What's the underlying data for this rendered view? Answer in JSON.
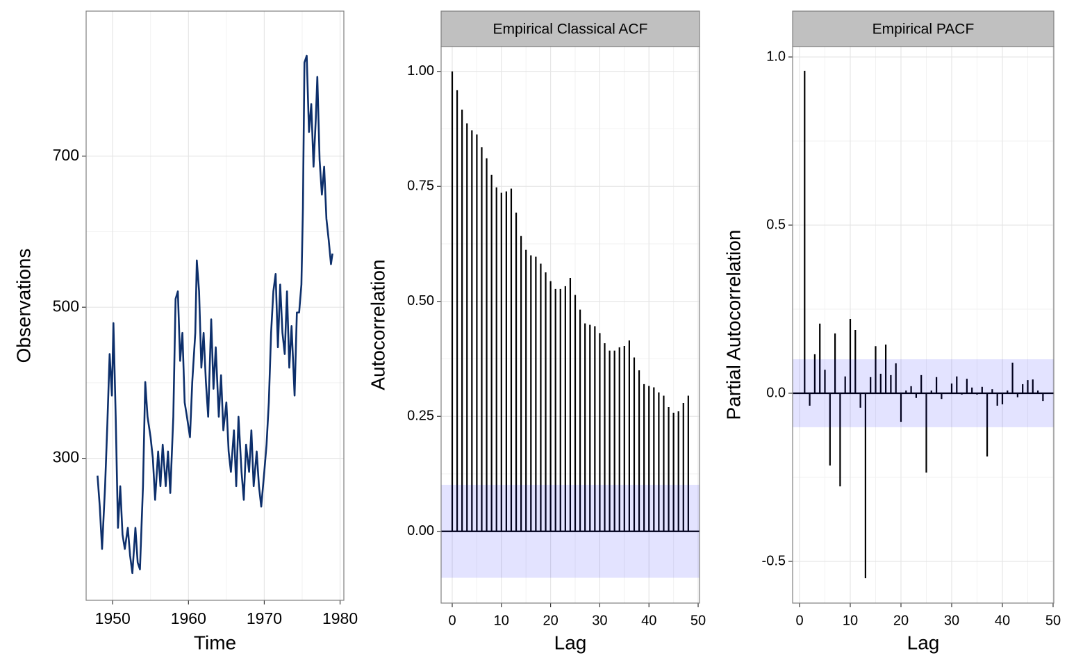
{
  "chart_data": [
    {
      "type": "line",
      "xlabel": "Time",
      "ylabel": "Observations",
      "color": "#0d2f6b",
      "grid": true,
      "xlim": [
        1946.5,
        1980.5
      ],
      "ylim": [
        112,
        892
      ],
      "xticks": [
        1950,
        1960,
        1970,
        1980
      ],
      "yticks": [
        300,
        500,
        700
      ],
      "x": [
        1948.0,
        1948.3,
        1948.6,
        1949.0,
        1949.3,
        1949.6,
        1949.9,
        1950.1,
        1950.4,
        1950.7,
        1951.0,
        1951.3,
        1951.6,
        1952.0,
        1952.3,
        1952.6,
        1953.0,
        1953.3,
        1953.6,
        1954.0,
        1954.3,
        1954.6,
        1955.0,
        1955.3,
        1955.6,
        1956.0,
        1956.3,
        1956.6,
        1957.0,
        1957.3,
        1957.6,
        1958.0,
        1958.3,
        1958.6,
        1958.9,
        1959.2,
        1959.5,
        1959.8,
        1960.2,
        1960.5,
        1960.9,
        1961.1,
        1961.4,
        1961.7,
        1962.0,
        1962.3,
        1962.6,
        1963.0,
        1963.3,
        1963.6,
        1964.0,
        1964.3,
        1964.6,
        1965.0,
        1965.3,
        1965.6,
        1966.0,
        1966.3,
        1966.6,
        1967.0,
        1967.3,
        1967.6,
        1968.0,
        1968.3,
        1968.6,
        1969.0,
        1969.3,
        1969.6,
        1970.0,
        1970.3,
        1970.6,
        1970.9,
        1971.2,
        1971.5,
        1971.8,
        1972.1,
        1972.4,
        1972.7,
        1973.0,
        1973.3,
        1973.6,
        1974.0,
        1974.3,
        1974.6,
        1974.9,
        1975.1,
        1975.3,
        1975.6,
        1975.9,
        1976.2,
        1976.5,
        1976.8,
        1977.0,
        1977.3,
        1977.6,
        1977.9,
        1978.2,
        1978.5,
        1978.8,
        1979.0
      ],
      "values": [
        277,
        236,
        180,
        263,
        346,
        438,
        383,
        479,
        355,
        208,
        263,
        199,
        180,
        208,
        171,
        148,
        208,
        162,
        153,
        263,
        401,
        355,
        328,
        300,
        245,
        309,
        263,
        318,
        263,
        309,
        254,
        355,
        511,
        521,
        429,
        466,
        374,
        355,
        328,
        401,
        466,
        562,
        521,
        420,
        466,
        401,
        355,
        484,
        392,
        447,
        355,
        410,
        337,
        374,
        309,
        282,
        337,
        263,
        355,
        282,
        245,
        318,
        282,
        337,
        263,
        309,
        263,
        236,
        282,
        318,
        374,
        466,
        521,
        544,
        447,
        530,
        466,
        438,
        521,
        420,
        475,
        383,
        493,
        493,
        530,
        631,
        824,
        833,
        732,
        769,
        686,
        750,
        805,
        695,
        649,
        686,
        617,
        589,
        557,
        571
      ]
    },
    {
      "type": "stem",
      "title": "Empirical Classical ACF",
      "xlabel": "Lag",
      "ylabel": "Autocorrelation",
      "color": "#000000",
      "grid": true,
      "xlim": [
        -2.26,
        50.28
      ],
      "ylim": [
        -0.156,
        1.054
      ],
      "xticks": [
        0,
        10,
        20,
        30,
        40,
        50
      ],
      "yticks": [
        {
          "value": 0,
          "label": "0.00"
        },
        {
          "value": 0.25,
          "label": "0.25"
        },
        {
          "value": 0.5,
          "label": "0.50"
        },
        {
          "value": 0.75,
          "label": "0.75"
        },
        {
          "value": 1,
          "label": "1.00"
        }
      ],
      "conf_band": [
        -0.101,
        0.101
      ],
      "band_color": "rgba(0,0,255,0.11)",
      "x": [
        0,
        1,
        2,
        3,
        4,
        5,
        6,
        7,
        8,
        9,
        10,
        11,
        12,
        13,
        14,
        15,
        16,
        17,
        18,
        19,
        20,
        21,
        22,
        23,
        24,
        25,
        26,
        27,
        28,
        29,
        30,
        31,
        32,
        33,
        34,
        35,
        36,
        37,
        38,
        39,
        40,
        41,
        42,
        43,
        44,
        45,
        46,
        47,
        48
      ],
      "values": [
        1.0,
        0.959,
        0.917,
        0.887,
        0.872,
        0.863,
        0.835,
        0.811,
        0.775,
        0.748,
        0.736,
        0.739,
        0.745,
        0.693,
        0.642,
        0.612,
        0.6,
        0.597,
        0.582,
        0.563,
        0.544,
        0.527,
        0.527,
        0.533,
        0.551,
        0.514,
        0.482,
        0.452,
        0.449,
        0.446,
        0.431,
        0.409,
        0.393,
        0.393,
        0.4,
        0.403,
        0.415,
        0.378,
        0.35,
        0.32,
        0.316,
        0.313,
        0.302,
        0.295,
        0.27,
        0.258,
        0.261,
        0.279,
        0.295
      ]
    },
    {
      "type": "stem",
      "title": "Empirical PACF",
      "xlabel": "Lag",
      "ylabel": "Partial Autocorrelation",
      "color": "#000000",
      "grid": true,
      "xlim": [
        -1.37,
        50.14
      ],
      "ylim": [
        -0.624,
        1.031
      ],
      "xticks": [
        0,
        10,
        20,
        30,
        40,
        50
      ],
      "yticks": [
        -0.5,
        {
          "value": 0,
          "label": "0.0"
        },
        0.5,
        {
          "value": 1,
          "label": "1.0"
        }
      ],
      "conf_band": [
        -0.101,
        0.101
      ],
      "band_color": "rgba(0,0,255,0.11)",
      "x": [
        1,
        2,
        3,
        4,
        5,
        6,
        7,
        8,
        9,
        10,
        11,
        12,
        13,
        14,
        15,
        16,
        17,
        18,
        19,
        20,
        21,
        22,
        23,
        24,
        25,
        26,
        27,
        28,
        29,
        30,
        31,
        32,
        33,
        34,
        35,
        36,
        37,
        38,
        39,
        40,
        41,
        42,
        43,
        44,
        45,
        46,
        47,
        48
      ],
      "values": [
        0.959,
        -0.037,
        0.116,
        0.207,
        0.07,
        -0.215,
        0.178,
        -0.277,
        0.05,
        0.221,
        0.188,
        -0.043,
        -0.55,
        0.048,
        0.14,
        0.058,
        0.145,
        0.054,
        0.089,
        -0.085,
        0.008,
        0.021,
        -0.014,
        0.054,
        -0.236,
        0.008,
        0.048,
        -0.017,
        0.002,
        0.029,
        0.05,
        -0.004,
        0.043,
        0.017,
        -0.004,
        0.019,
        -0.188,
        0.012,
        -0.037,
        -0.033,
        0.008,
        0.091,
        -0.012,
        0.027,
        0.039,
        0.041,
        0.008,
        -0.023
      ]
    }
  ]
}
